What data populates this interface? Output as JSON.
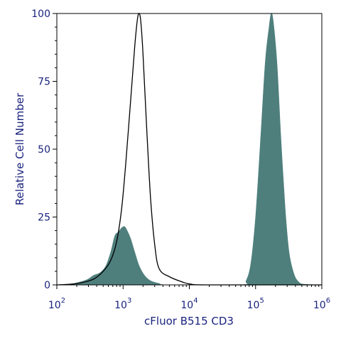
{
  "chart_data": {
    "type": "area",
    "xlabel": "cFluor B515 CD3",
    "ylabel": "Relative Cell Number",
    "x_scale": "log",
    "xlim": [
      100,
      1000000
    ],
    "ylim": [
      0,
      100
    ],
    "x_ticks": [
      {
        "value": 100,
        "base": "10",
        "exp": "2"
      },
      {
        "value": 1000,
        "base": "10",
        "exp": "3"
      },
      {
        "value": 10000,
        "base": "10",
        "exp": "4"
      },
      {
        "value": 100000,
        "base": "10",
        "exp": "5"
      },
      {
        "value": 1000000,
        "base": "10",
        "exp": "6"
      }
    ],
    "y_ticks": [
      {
        "value": 0,
        "label": "0"
      },
      {
        "value": 25,
        "label": "25"
      },
      {
        "value": 50,
        "label": "50"
      },
      {
        "value": 75,
        "label": "75"
      },
      {
        "value": 100,
        "label": "100"
      }
    ],
    "grid": false,
    "series": [
      {
        "style": "outline",
        "color": "#000000",
        "points": [
          [
            100,
            0
          ],
          [
            200,
            0.5
          ],
          [
            350,
            2
          ],
          [
            500,
            5
          ],
          [
            650,
            9
          ],
          [
            800,
            16
          ],
          [
            950,
            28
          ],
          [
            1100,
            45
          ],
          [
            1300,
            68
          ],
          [
            1500,
            88
          ],
          [
            1650,
            98
          ],
          [
            1750,
            100
          ],
          [
            1850,
            97
          ],
          [
            2000,
            85
          ],
          [
            2300,
            55
          ],
          [
            2600,
            32
          ],
          [
            3000,
            15
          ],
          [
            3500,
            6
          ],
          [
            5000,
            3
          ],
          [
            8000,
            1
          ],
          [
            10500,
            0.3
          ],
          [
            20000,
            0
          ],
          [
            1000000,
            0
          ]
        ]
      },
      {
        "style": "filled",
        "color": "#4e7f7d",
        "points": [
          [
            100,
            0
          ],
          [
            160,
            0.3
          ],
          [
            220,
            1
          ],
          [
            290,
            2
          ],
          [
            360,
            3.5
          ],
          [
            450,
            4.5
          ],
          [
            550,
            7
          ],
          [
            650,
            12
          ],
          [
            750,
            18
          ],
          [
            850,
            19.5
          ],
          [
            950,
            21
          ],
          [
            1050,
            21.5
          ],
          [
            1150,
            20
          ],
          [
            1300,
            17
          ],
          [
            1500,
            12
          ],
          [
            1750,
            7
          ],
          [
            2100,
            3.5
          ],
          [
            2600,
            1.5
          ],
          [
            3500,
            0.5
          ],
          [
            5000,
            0
          ],
          [
            60000,
            0
          ],
          [
            72000,
            1.5
          ],
          [
            85000,
            8
          ],
          [
            100000,
            25
          ],
          [
            120000,
            55
          ],
          [
            140000,
            82
          ],
          [
            160000,
            95
          ],
          [
            172000,
            100
          ],
          [
            185000,
            97
          ],
          [
            210000,
            82
          ],
          [
            240000,
            55
          ],
          [
            280000,
            28
          ],
          [
            320000,
            12
          ],
          [
            380000,
            4
          ],
          [
            450000,
            1
          ],
          [
            550000,
            0.2
          ],
          [
            1000000,
            0
          ]
        ]
      }
    ]
  }
}
